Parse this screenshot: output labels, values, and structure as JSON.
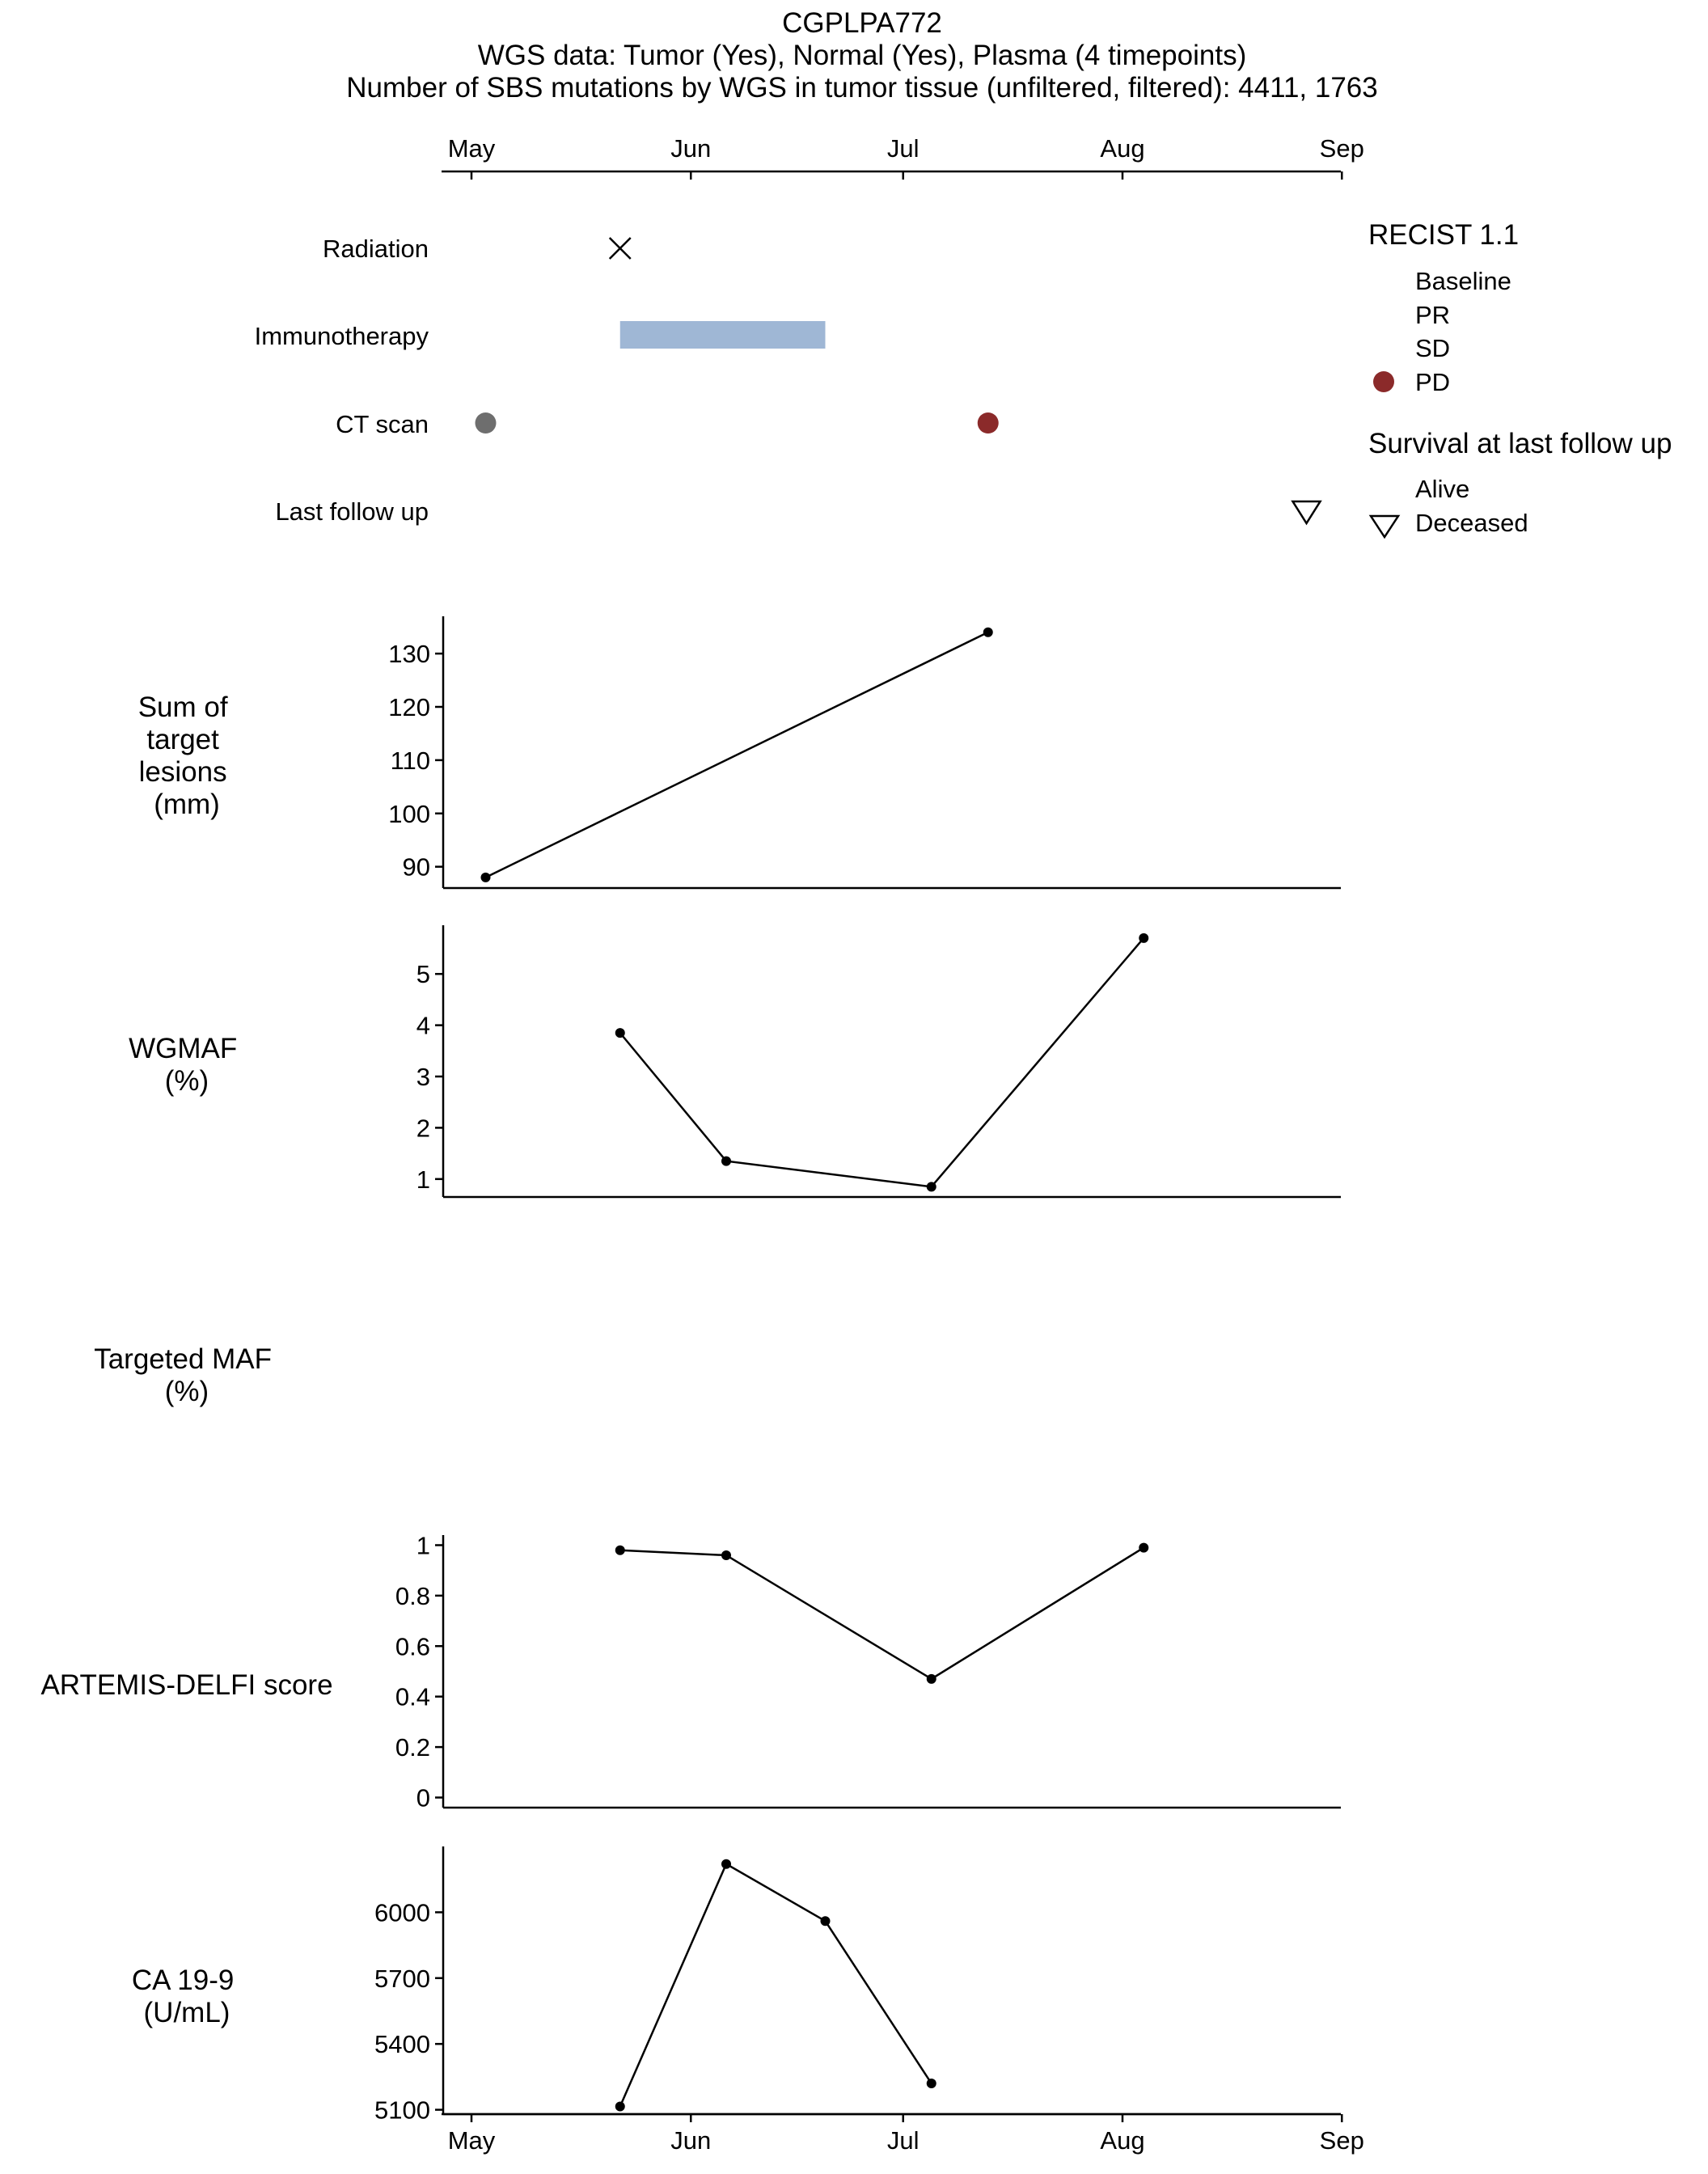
{
  "header": {
    "title": "CGPLPA772",
    "line2": "WGS data: Tumor (Yes), Normal (Yes), Plasma (4 timepoints)",
    "line3": "Number of SBS mutations by WGS in tumor tissue (unfiltered, filtered): 4411, 1763"
  },
  "time_axis": {
    "ticks": [
      "May",
      "Jun",
      "Jul",
      "Aug",
      "Sep"
    ]
  },
  "events": {
    "rows": [
      "Radiation",
      "Immunotherapy",
      "CT scan",
      "Last follow up"
    ]
  },
  "legend": {
    "recist_title": "RECIST 1.1",
    "recist_items": [
      "Baseline",
      "PR",
      "SD",
      "PD"
    ],
    "survival_title": "Survival at last follow up",
    "survival_items": [
      "Alive",
      "Deceased"
    ]
  },
  "colors": {
    "ct_baseline": "#6e6e6e",
    "ct_pd": "#8b2a2a",
    "immunotherapy": "#9fb7d5",
    "line": "#000000"
  },
  "panel_labels": {
    "sum": [
      "Sum of",
      "target",
      "lesions",
      "(mm)"
    ],
    "wgmaf": [
      "WGMAF",
      "(%)"
    ],
    "targeted": [
      "Targeted MAF",
      "(%)"
    ],
    "delfi": [
      "ARTEMIS-DELFI score"
    ],
    "ca199": [
      "CA 19-9",
      "(U/mL)"
    ]
  },
  "chart_data": [
    {
      "type": "timeline",
      "x_ticks": [
        "May",
        "Jun",
        "Jul",
        "Aug",
        "Sep"
      ],
      "radiation": [
        {
          "date": "2021-05-22"
        }
      ],
      "immunotherapy": [
        {
          "start": "2021-05-22",
          "end": "2021-06-20"
        }
      ],
      "ct_scan": [
        {
          "date": "2021-05-03",
          "recist": "Baseline"
        },
        {
          "date": "2021-07-13",
          "recist": "PD"
        }
      ],
      "last_follow_up": {
        "date": "2021-08-27",
        "survival": "Deceased"
      }
    },
    {
      "type": "line",
      "points": [
        {
          "x": "2021-05-03",
          "y": 88
        },
        {
          "x": "2021-07-13",
          "y": 134
        }
      ],
      "y_ticks": [
        90,
        100,
        110,
        120,
        130
      ],
      "ylim": [
        86,
        137
      ]
    },
    {
      "type": "line",
      "points": [
        {
          "x": "2021-05-22",
          "y": 3.85
        },
        {
          "x": "2021-06-06",
          "y": 1.35
        },
        {
          "x": "2021-07-05",
          "y": 0.85
        },
        {
          "x": "2021-08-04",
          "y": 5.7
        }
      ],
      "y_ticks": [
        1,
        2,
        3,
        4,
        5
      ],
      "ylim": [
        0.65,
        5.95
      ]
    },
    {
      "type": "line",
      "points": [],
      "y_ticks": []
    },
    {
      "type": "line",
      "points": [
        {
          "x": "2021-05-22",
          "y": 0.98
        },
        {
          "x": "2021-06-06",
          "y": 0.96
        },
        {
          "x": "2021-07-05",
          "y": 0.47
        },
        {
          "x": "2021-08-04",
          "y": 0.99
        }
      ],
      "y_ticks": [
        "0",
        "0.2",
        "0.4",
        "0.6",
        "0.8",
        "1"
      ],
      "ylim": [
        -0.04,
        1.04
      ]
    },
    {
      "type": "line",
      "points": [
        {
          "x": "2021-05-22",
          "y": 5115
        },
        {
          "x": "2021-06-06",
          "y": 6220
        },
        {
          "x": "2021-06-20",
          "y": 5960
        },
        {
          "x": "2021-07-05",
          "y": 5220
        }
      ],
      "y_ticks": [
        5100,
        5400,
        5700,
        6000
      ],
      "ylim": [
        5080,
        6300
      ]
    }
  ]
}
